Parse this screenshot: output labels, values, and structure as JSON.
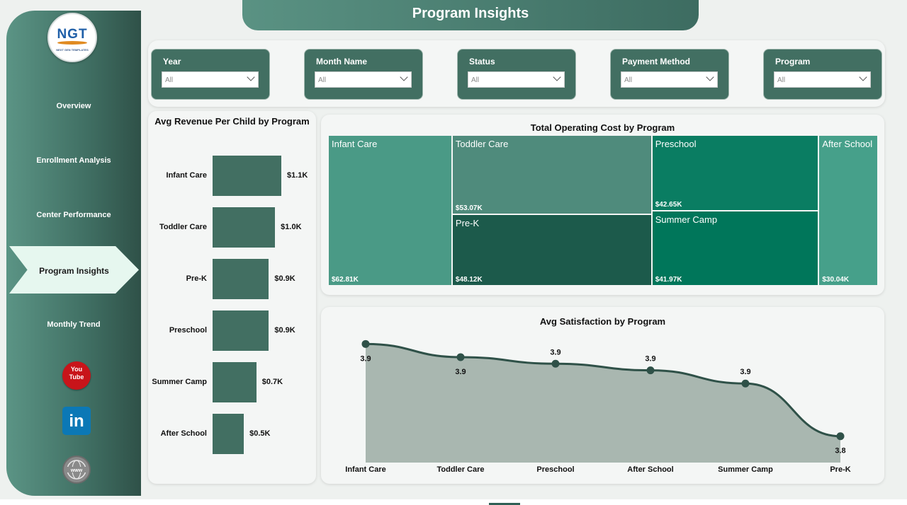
{
  "logo": {
    "text": "NGT",
    "subtext": "NEXT GEN TEMPLATES"
  },
  "header": {
    "title": "Program Insights"
  },
  "nav": {
    "items": [
      "Overview",
      "Enrollment Analysis",
      "Center Performance",
      "Program Insights",
      "Monthly Trend"
    ],
    "active": "Program Insights"
  },
  "social": {
    "youtube": "You Tube",
    "linkedin": "in",
    "website": "www"
  },
  "filters": [
    {
      "label": "Year",
      "value": "All"
    },
    {
      "label": "Month Name",
      "value": "All"
    },
    {
      "label": "Status",
      "value": "All"
    },
    {
      "label": "Payment Method",
      "value": "All"
    },
    {
      "label": "Program",
      "value": "All"
    }
  ],
  "colors": {
    "accent": "#426f62",
    "area_fill": "#a9b7b0",
    "line": "#2f5148"
  },
  "chart_data": [
    {
      "type": "bar",
      "title": "Avg Revenue Per Child by Program",
      "orientation": "horizontal",
      "categories": [
        "Infant Care",
        "Toddler Care",
        "Pre-K",
        "Preschool",
        "Summer Camp",
        "After School"
      ],
      "values": [
        1.1,
        1.0,
        0.9,
        0.9,
        0.7,
        0.5
      ],
      "labels": [
        "$1.1K",
        "$1.0K",
        "$0.9K",
        "$0.9K",
        "$0.7K",
        "$0.5K"
      ],
      "unit": "$K"
    },
    {
      "type": "treemap",
      "title": "Total Operating Cost by Program",
      "categories": [
        "Infant Care",
        "Toddler Care",
        "Pre-K",
        "Preschool",
        "Summer Camp",
        "After School"
      ],
      "values": [
        62.81,
        53.07,
        48.12,
        42.65,
        41.97,
        30.04
      ],
      "labels": [
        "$62.81K",
        "$53.07K",
        "$48.12K",
        "$42.65K",
        "$41.97K",
        "$30.04K"
      ],
      "colors": [
        "#4a9a86",
        "#4f8b7c",
        "#1c5a4b",
        "#0a7d62",
        "#00765a",
        "#46a08a"
      ]
    },
    {
      "type": "area",
      "title": "Avg Satisfaction by Program",
      "categories": [
        "Infant Care",
        "Toddler Care",
        "Preschool",
        "After School",
        "Summer Camp",
        "Pre-K"
      ],
      "values": [
        3.93,
        3.91,
        3.9,
        3.89,
        3.87,
        3.79
      ],
      "labels": [
        "3.9",
        "3.9",
        "3.9",
        "3.9",
        "3.9",
        "3.8"
      ]
    }
  ]
}
